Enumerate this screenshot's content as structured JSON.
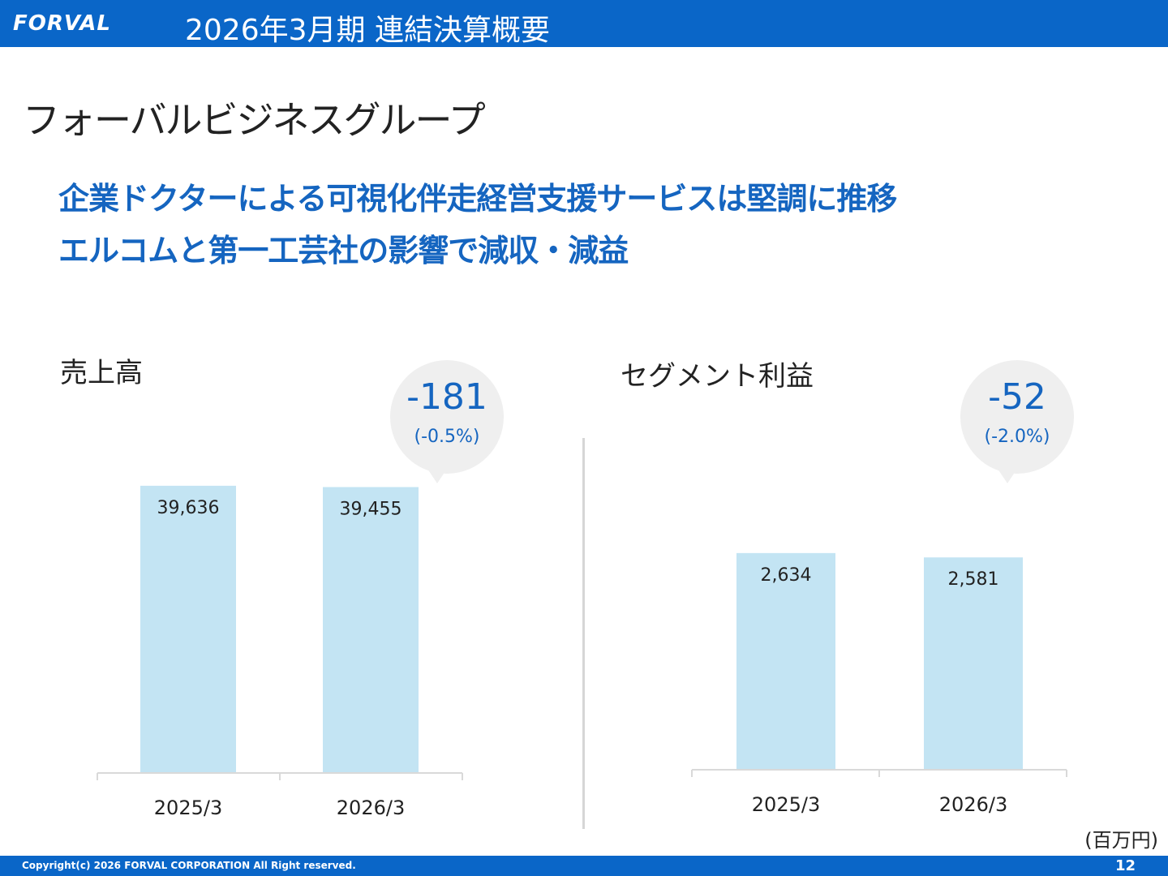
{
  "header": {
    "logo_text": "FORVAL",
    "title": "2026年3月期  連結決算概要"
  },
  "section_title": "フォーバルビジネスグループ",
  "headline": {
    "line1": "企業ドクターによる可視化伴走経営支援サービスは堅調に推移",
    "line2": "エルコムと第一工芸社の影響で減収・減益"
  },
  "unit_label": "(百万円)",
  "footer": {
    "copyright": "Copyright(c)  2026 FORVAL CORPORATION All Right reserved.",
    "page_number": "12"
  },
  "colors": {
    "header_bg": "#0a66c8",
    "headline": "#1565c0",
    "bar": "#c3e4f3",
    "bubble_bg": "#efefef"
  },
  "change": [
    {
      "value": "-181",
      "pct": "(-0.5%)"
    },
    {
      "value": "-52",
      "pct": "(-2.0%)"
    }
  ],
  "chart_data": [
    {
      "type": "bar",
      "title": "売上高",
      "categories": [
        "2025/3",
        "2026/3"
      ],
      "values": [
        39636,
        39455
      ],
      "value_labels": [
        "39,636",
        "39,455"
      ],
      "unit": "百万円"
    },
    {
      "type": "bar",
      "title": "セグメント利益",
      "categories": [
        "2025/3",
        "2026/3"
      ],
      "values": [
        2634,
        2581
      ],
      "value_labels": [
        "2,634",
        "2,581"
      ],
      "unit": "百万円"
    }
  ]
}
